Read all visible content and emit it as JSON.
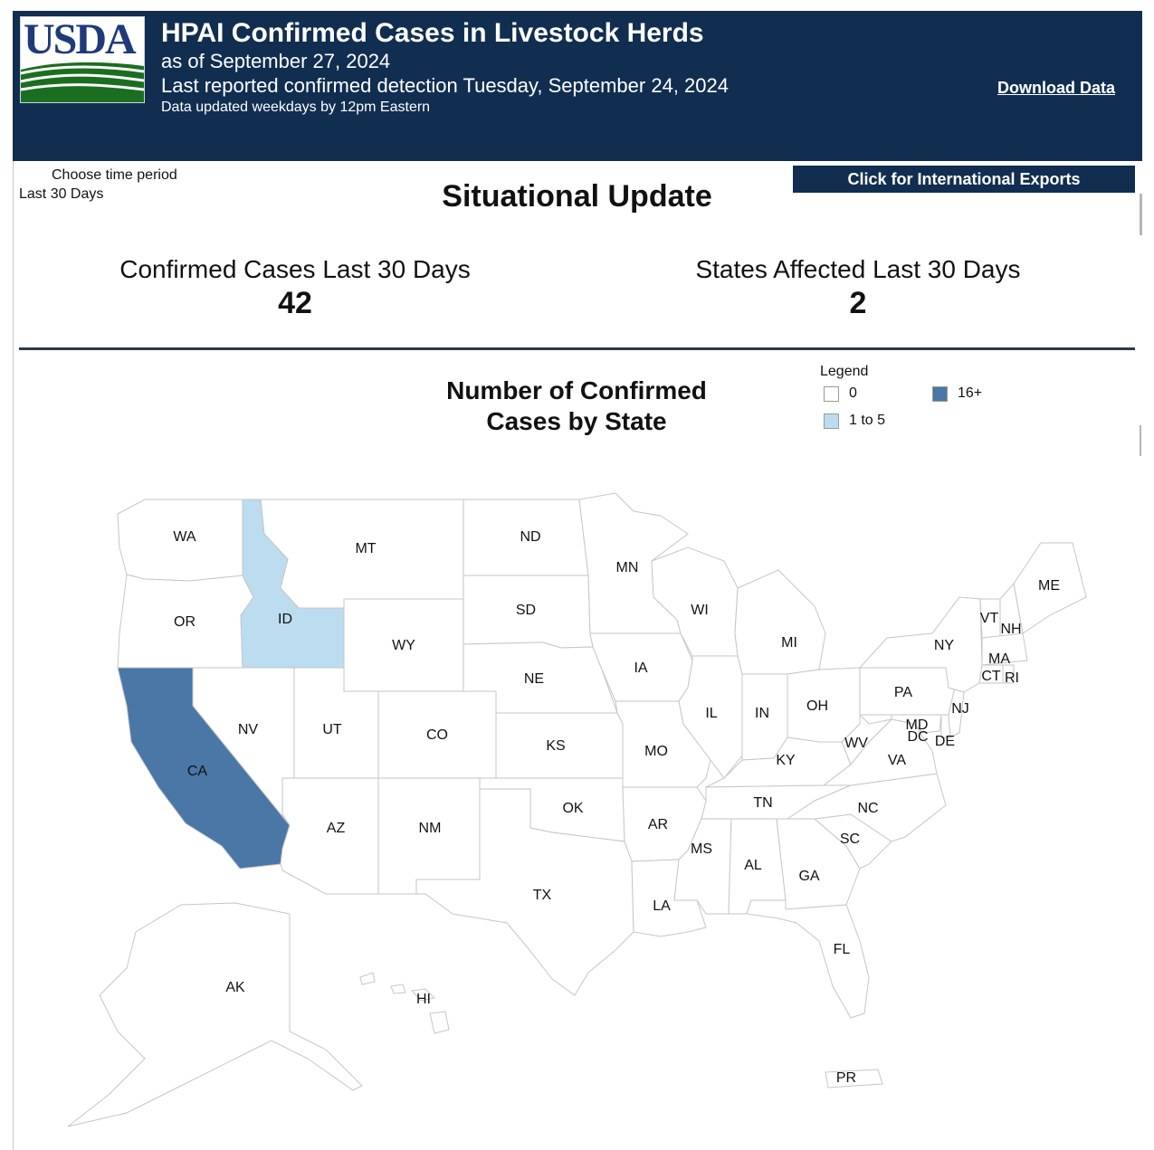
{
  "header": {
    "logo_text": "USDA",
    "title": "HPAI Confirmed Cases in Livestock Herds",
    "as_of": "as of September 27, 2024",
    "last_detection": "Last reported confirmed detection Tuesday, September 24, 2024",
    "update_note": "Data updated weekdays by 12pm Eastern",
    "download_label": "Download Data"
  },
  "controls": {
    "period_label": "Choose time period",
    "period_value": "Last 30 Days",
    "section_title": "Situational Update",
    "international_button": "Click for International Exports"
  },
  "kpis": {
    "cases_label": "Confirmed Cases Last 30 Days",
    "cases_value": "42",
    "states_label": "States Affected Last 30 Days",
    "states_value": "2"
  },
  "map": {
    "title_line1": "Number of Confirmed",
    "title_line2": "Cases by State",
    "legend": {
      "title": "Legend",
      "items": [
        {
          "label": "0",
          "color": "#ffffff"
        },
        {
          "label": "16+",
          "color": "#4a77a6"
        },
        {
          "label": "1 to 5",
          "color": "#bcdcf0"
        }
      ]
    },
    "highlight_colors": {
      "ID": "#bcdcf0",
      "CA": "#4a77a6"
    },
    "state_labels": [
      "WA",
      "MT",
      "ND",
      "MN",
      "ME",
      "SD",
      "WI",
      "VT",
      "NH",
      "OR",
      "ID",
      "WY",
      "MI",
      "NY",
      "MA",
      "IA",
      "CT",
      "RI",
      "NE",
      "PA",
      "IL",
      "IN",
      "OH",
      "NJ",
      "NV",
      "UT",
      "MD",
      "DC",
      "DE",
      "CO",
      "KS",
      "MO",
      "WV",
      "VA",
      "CA",
      "KY",
      "TN",
      "OK",
      "NC",
      "AR",
      "SC",
      "AZ",
      "NM",
      "MS",
      "AL",
      "GA",
      "TX",
      "LA",
      "FL",
      "AK",
      "HI",
      "PR"
    ]
  }
}
